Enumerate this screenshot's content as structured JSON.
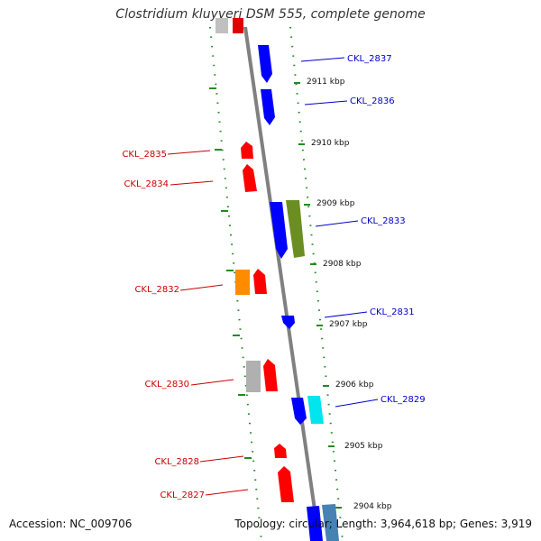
{
  "title": "Clostridium kluyveri DSM 555, complete genome",
  "footer": {
    "accession": "Accession: NC_009706",
    "topology": "Topology: circular; Length: 3,964,618 bp; Genes: 3,919"
  },
  "kbp_ticks": [
    {
      "label": "2911 kbp",
      "pos_kbp": 2911
    },
    {
      "label": "2910 kbp",
      "pos_kbp": 2910
    },
    {
      "label": "2909 kbp",
      "pos_kbp": 2909
    },
    {
      "label": "2908 kbp",
      "pos_kbp": 2908
    },
    {
      "label": "2907 kbp",
      "pos_kbp": 2907
    },
    {
      "label": "2906 kbp",
      "pos_kbp": 2906
    },
    {
      "label": "2905 kbp",
      "pos_kbp": 2905
    },
    {
      "label": "2904 kbp",
      "pos_kbp": 2904
    }
  ],
  "genes_forward_labeled": [
    {
      "label": "CKL_2837",
      "color": "#0000ff"
    },
    {
      "label": "CKL_2836",
      "color": "#0000ff"
    },
    {
      "label": "CKL_2833",
      "color": "#0000ff"
    },
    {
      "label": "CKL_2831",
      "color": "#0000ff"
    },
    {
      "label": "CKL_2829",
      "color": "#0000ff"
    }
  ],
  "genes_reverse_labeled": [
    {
      "label": "CKL_2835",
      "color": "#ff0000"
    },
    {
      "label": "CKL_2834",
      "color": "#ff0000"
    },
    {
      "label": "CKL_2832",
      "color": "#ff0000"
    },
    {
      "label": "CKL_2830",
      "color": "#ff0000"
    },
    {
      "label": "CKL_2828",
      "color": "#ff0000"
    },
    {
      "label": "CKL_2827",
      "color": "#ff0000"
    }
  ],
  "colors": {
    "blue": "#0000ff",
    "red": "#ff0000",
    "olive": "#6b8e23",
    "orange": "#ff8c00",
    "cyan": "#00e5ee",
    "gray": "#b0b0b0",
    "steelblue": "#4682b4",
    "backbone": "#808080",
    "ticks": "#228b22"
  }
}
